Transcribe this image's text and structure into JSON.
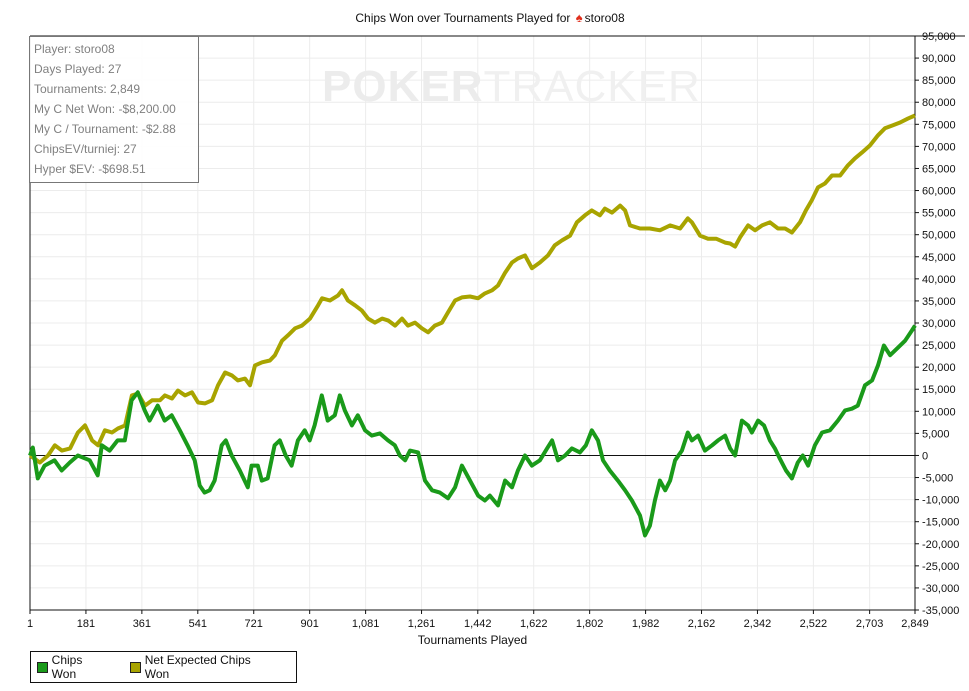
{
  "chart_data": {
    "type": "line",
    "title_prefix": "Chips Won over Tournaments Played for",
    "title_player": "storo08",
    "title_icon": "spade-icon",
    "xlabel": "Tournaments Played",
    "ylabel": "",
    "xlim": [
      1,
      2849
    ],
    "ylim": [
      -35000,
      95000
    ],
    "x_ticks": [
      1,
      181,
      361,
      541,
      721,
      901,
      1081,
      1261,
      1442,
      1622,
      1802,
      1982,
      2162,
      2342,
      2522,
      2703,
      2849
    ],
    "x_tick_labels": [
      "1",
      "181",
      "361",
      "541",
      "721",
      "901",
      "1,081",
      "1,261",
      "1,442",
      "1,622",
      "1,802",
      "1,982",
      "2,162",
      "2,342",
      "2,522",
      "2,703",
      "2,849"
    ],
    "y_ticks": [
      95000,
      90000,
      85000,
      80000,
      75000,
      70000,
      65000,
      60000,
      55000,
      50000,
      45000,
      40000,
      35000,
      30000,
      25000,
      20000,
      15000,
      10000,
      5000,
      0,
      -5000,
      -10000,
      -15000,
      -20000,
      -25000,
      -30000,
      -35000
    ],
    "y_tick_labels": [
      "95,000",
      "90,000",
      "85,000",
      "80,000",
      "75,000",
      "70,000",
      "65,000",
      "60,000",
      "55,000",
      "50,000",
      "45,000",
      "40,000",
      "35,000",
      "30,000",
      "25,000",
      "20,000",
      "15,000",
      "10,000",
      "5,000",
      "0",
      "-5,000",
      "-10,000",
      "-15,000",
      "-20,000",
      "-25,000",
      "-30,000",
      "-35,000"
    ],
    "grid": true,
    "legend_position": "bottom-left",
    "series": [
      {
        "name": "Chips Won",
        "color": "#1a9a1a",
        "points": [
          [
            1,
            0
          ],
          [
            10,
            1800
          ],
          [
            26,
            -5200
          ],
          [
            48,
            -2300
          ],
          [
            80,
            -1100
          ],
          [
            103,
            -3400
          ],
          [
            129,
            -1600
          ],
          [
            155,
            0
          ],
          [
            193,
            -1100
          ],
          [
            219,
            -4500
          ],
          [
            232,
            2300
          ],
          [
            257,
            1100
          ],
          [
            283,
            3400
          ],
          [
            306,
            3400
          ],
          [
            328,
            12500
          ],
          [
            348,
            14300
          ],
          [
            370,
            10200
          ],
          [
            386,
            7900
          ],
          [
            412,
            11300
          ],
          [
            434,
            7900
          ],
          [
            457,
            9100
          ],
          [
            483,
            5700
          ],
          [
            508,
            2300
          ],
          [
            531,
            -1100
          ],
          [
            547,
            -6800
          ],
          [
            563,
            -8400
          ],
          [
            579,
            -7900
          ],
          [
            595,
            -5700
          ],
          [
            618,
            2300
          ],
          [
            631,
            3400
          ],
          [
            650,
            0
          ],
          [
            676,
            -3400
          ],
          [
            702,
            -7200
          ],
          [
            714,
            -2300
          ],
          [
            734,
            -2300
          ],
          [
            747,
            -5700
          ],
          [
            766,
            -5200
          ],
          [
            788,
            2300
          ],
          [
            805,
            3400
          ],
          [
            824,
            0
          ],
          [
            843,
            -2300
          ],
          [
            863,
            3400
          ],
          [
            885,
            5700
          ],
          [
            901,
            3400
          ],
          [
            917,
            6800
          ],
          [
            940,
            13600
          ],
          [
            959,
            7900
          ],
          [
            982,
            9100
          ],
          [
            998,
            13600
          ],
          [
            1014,
            10200
          ],
          [
            1037,
            6800
          ],
          [
            1056,
            9100
          ],
          [
            1079,
            5700
          ],
          [
            1101,
            4500
          ],
          [
            1127,
            5000
          ],
          [
            1153,
            3400
          ],
          [
            1175,
            2300
          ],
          [
            1191,
            0
          ],
          [
            1208,
            -1100
          ],
          [
            1224,
            1100
          ],
          [
            1250,
            700
          ],
          [
            1272,
            -5700
          ],
          [
            1295,
            -7900
          ],
          [
            1320,
            -8400
          ],
          [
            1346,
            -9700
          ],
          [
            1369,
            -7200
          ],
          [
            1391,
            -2300
          ],
          [
            1417,
            -5700
          ],
          [
            1443,
            -9100
          ],
          [
            1465,
            -10200
          ],
          [
            1481,
            -9100
          ],
          [
            1507,
            -11300
          ],
          [
            1530,
            -5700
          ],
          [
            1552,
            -7200
          ],
          [
            1571,
            -3400
          ],
          [
            1594,
            0
          ],
          [
            1616,
            -2300
          ],
          [
            1642,
            -1100
          ],
          [
            1665,
            1600
          ],
          [
            1681,
            3400
          ],
          [
            1700,
            -1100
          ],
          [
            1723,
            0
          ],
          [
            1745,
            1600
          ],
          [
            1771,
            700
          ],
          [
            1790,
            2300
          ],
          [
            1809,
            5700
          ],
          [
            1829,
            3400
          ],
          [
            1845,
            -1100
          ],
          [
            1867,
            -3400
          ],
          [
            1893,
            -5700
          ],
          [
            1916,
            -7900
          ],
          [
            1938,
            -10200
          ],
          [
            1964,
            -13600
          ],
          [
            1980,
            -18100
          ],
          [
            1996,
            -15900
          ],
          [
            2012,
            -10200
          ],
          [
            2028,
            -5700
          ],
          [
            2045,
            -7900
          ],
          [
            2061,
            -5700
          ],
          [
            2077,
            -1100
          ],
          [
            2099,
            1100
          ],
          [
            2118,
            5200
          ],
          [
            2131,
            3400
          ],
          [
            2151,
            4500
          ],
          [
            2173,
            1100
          ],
          [
            2196,
            2300
          ],
          [
            2215,
            3400
          ],
          [
            2238,
            4500
          ],
          [
            2254,
            1600
          ],
          [
            2270,
            0
          ],
          [
            2292,
            7900
          ],
          [
            2312,
            6800
          ],
          [
            2324,
            5200
          ],
          [
            2344,
            7900
          ],
          [
            2363,
            6800
          ],
          [
            2382,
            3400
          ],
          [
            2398,
            1600
          ],
          [
            2414,
            -700
          ],
          [
            2434,
            -3400
          ],
          [
            2453,
            -5200
          ],
          [
            2472,
            -1600
          ],
          [
            2488,
            0
          ],
          [
            2505,
            -2300
          ],
          [
            2527,
            2300
          ],
          [
            2550,
            5200
          ],
          [
            2575,
            5700
          ],
          [
            2601,
            7900
          ],
          [
            2624,
            10200
          ],
          [
            2646,
            10600
          ],
          [
            2665,
            11300
          ],
          [
            2688,
            15900
          ],
          [
            2711,
            17000
          ],
          [
            2730,
            20400
          ],
          [
            2749,
            24900
          ],
          [
            2769,
            22700
          ],
          [
            2791,
            24200
          ],
          [
            2817,
            26000
          ],
          [
            2839,
            28300
          ],
          [
            2849,
            29400
          ]
        ]
      },
      {
        "name": "Net Expected Chips Won",
        "color": "#a8a400",
        "points": [
          [
            1,
            0
          ],
          [
            33,
            -1600
          ],
          [
            59,
            0
          ],
          [
            81,
            2300
          ],
          [
            104,
            1100
          ],
          [
            130,
            1600
          ],
          [
            155,
            5200
          ],
          [
            178,
            6800
          ],
          [
            201,
            3400
          ],
          [
            220,
            2300
          ],
          [
            242,
            5700
          ],
          [
            265,
            5200
          ],
          [
            284,
            6100
          ],
          [
            307,
            6800
          ],
          [
            329,
            13600
          ],
          [
            349,
            14000
          ],
          [
            371,
            11300
          ],
          [
            394,
            12500
          ],
          [
            419,
            12500
          ],
          [
            435,
            13600
          ],
          [
            458,
            12900
          ],
          [
            477,
            14700
          ],
          [
            500,
            13600
          ],
          [
            522,
            14300
          ],
          [
            542,
            12000
          ],
          [
            564,
            11800
          ],
          [
            587,
            12500
          ],
          [
            606,
            15900
          ],
          [
            629,
            18800
          ],
          [
            651,
            18100
          ],
          [
            670,
            17000
          ],
          [
            693,
            17400
          ],
          [
            709,
            15900
          ],
          [
            725,
            20400
          ],
          [
            748,
            21100
          ],
          [
            773,
            21500
          ],
          [
            789,
            22700
          ],
          [
            812,
            26000
          ],
          [
            831,
            27200
          ],
          [
            854,
            28800
          ],
          [
            876,
            29400
          ],
          [
            902,
            31000
          ],
          [
            928,
            34000
          ],
          [
            941,
            35600
          ],
          [
            966,
            35100
          ],
          [
            992,
            36200
          ],
          [
            1005,
            37400
          ],
          [
            1024,
            35100
          ],
          [
            1047,
            34000
          ],
          [
            1069,
            32800
          ],
          [
            1089,
            31000
          ],
          [
            1111,
            30100
          ],
          [
            1134,
            31000
          ],
          [
            1153,
            30600
          ],
          [
            1176,
            29400
          ],
          [
            1198,
            31000
          ],
          [
            1217,
            29400
          ],
          [
            1240,
            30100
          ],
          [
            1262,
            28800
          ],
          [
            1282,
            27900
          ],
          [
            1304,
            29400
          ],
          [
            1327,
            30100
          ],
          [
            1346,
            32400
          ],
          [
            1369,
            35100
          ],
          [
            1391,
            35800
          ],
          [
            1417,
            36000
          ],
          [
            1443,
            35600
          ],
          [
            1465,
            36700
          ],
          [
            1488,
            37400
          ],
          [
            1507,
            38500
          ],
          [
            1530,
            41400
          ],
          [
            1552,
            43700
          ],
          [
            1571,
            44600
          ],
          [
            1594,
            45300
          ],
          [
            1616,
            42400
          ],
          [
            1642,
            43700
          ],
          [
            1668,
            45300
          ],
          [
            1690,
            47600
          ],
          [
            1713,
            48700
          ],
          [
            1739,
            49800
          ],
          [
            1761,
            52800
          ],
          [
            1787,
            54400
          ],
          [
            1809,
            55500
          ],
          [
            1835,
            54400
          ],
          [
            1851,
            55900
          ],
          [
            1874,
            55000
          ],
          [
            1900,
            56600
          ],
          [
            1916,
            55500
          ],
          [
            1932,
            52100
          ],
          [
            1964,
            51400
          ],
          [
            1996,
            51400
          ],
          [
            2028,
            51000
          ],
          [
            2061,
            52100
          ],
          [
            2093,
            51400
          ],
          [
            2118,
            53700
          ],
          [
            2131,
            52800
          ],
          [
            2157,
            49800
          ],
          [
            2183,
            49100
          ],
          [
            2209,
            49100
          ],
          [
            2238,
            48200
          ],
          [
            2254,
            48000
          ],
          [
            2270,
            47300
          ],
          [
            2286,
            49400
          ],
          [
            2312,
            52100
          ],
          [
            2334,
            51000
          ],
          [
            2357,
            52100
          ],
          [
            2382,
            52800
          ],
          [
            2408,
            51400
          ],
          [
            2431,
            51400
          ],
          [
            2453,
            50500
          ],
          [
            2479,
            52800
          ],
          [
            2498,
            55500
          ],
          [
            2517,
            57800
          ],
          [
            2537,
            60700
          ],
          [
            2559,
            61600
          ],
          [
            2582,
            63400
          ],
          [
            2608,
            63400
          ],
          [
            2633,
            65700
          ],
          [
            2656,
            67300
          ],
          [
            2678,
            68600
          ],
          [
            2704,
            70200
          ],
          [
            2730,
            72500
          ],
          [
            2752,
            74100
          ],
          [
            2775,
            74700
          ],
          [
            2801,
            75400
          ],
          [
            2826,
            76300
          ],
          [
            2849,
            77000
          ]
        ]
      }
    ]
  },
  "stats": {
    "player": "Player: storo08",
    "days_played": "Days Played: 27",
    "tournaments": "Tournaments: 2,849",
    "net_won": "My C Net Won: -$8,200.00",
    "per_tournament": "My C / Tournament: -$2.88",
    "chips_ev": "ChipsEV/turniej: 27",
    "hyper_sev": "Hyper $EV: -$698.51"
  },
  "watermark": {
    "bold": "POKER",
    "light": "TRACKER"
  },
  "legend": {
    "chips_won": "Chips Won",
    "net_expected": "Net Expected Chips Won"
  }
}
